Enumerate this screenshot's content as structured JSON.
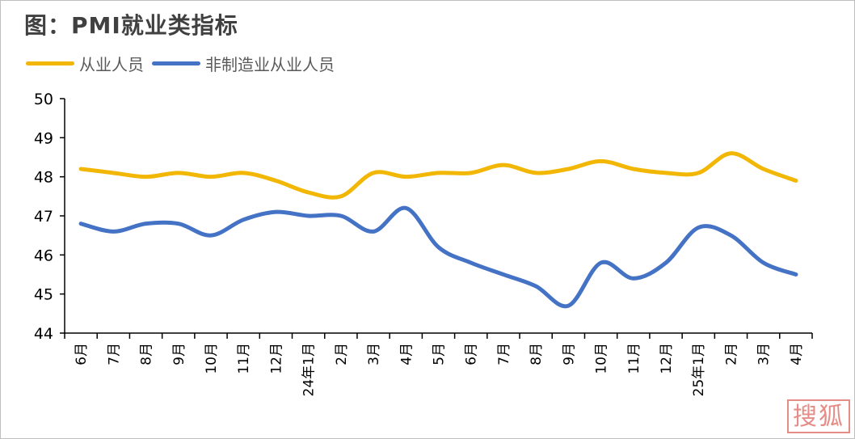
{
  "title": "图：PMI就业类指标",
  "colors": {
    "series1": "#f2b705",
    "series2": "#4472c4",
    "axis": "#000000",
    "text": "#000000"
  },
  "watermark": "搜狐",
  "chart_data": {
    "type": "line",
    "title": "图：PMI就业类指标",
    "categories": [
      "6月",
      "7月",
      "8月",
      "9月",
      "10月",
      "11月",
      "12月",
      "24年1月",
      "2月",
      "3月",
      "4月",
      "5月",
      "6月",
      "7月",
      "8月",
      "9月",
      "10月",
      "11月",
      "12月",
      "25年1月",
      "2月",
      "3月",
      "4月"
    ],
    "series": [
      {
        "name": "从业人员",
        "values": [
          48.2,
          48.1,
          48.0,
          48.1,
          48.0,
          48.1,
          47.9,
          47.6,
          47.5,
          48.1,
          48.0,
          48.1,
          48.1,
          48.3,
          48.1,
          48.2,
          48.4,
          48.2,
          48.1,
          48.1,
          48.6,
          48.2,
          47.9
        ]
      },
      {
        "name": "非制造业从业人员",
        "values": [
          46.8,
          46.6,
          46.8,
          46.8,
          46.5,
          46.9,
          47.1,
          47.0,
          47.0,
          46.6,
          47.2,
          46.2,
          45.8,
          45.5,
          45.2,
          44.7,
          45.8,
          45.4,
          45.8,
          46.7,
          46.5,
          45.8,
          45.5
        ]
      }
    ],
    "ylim": [
      44,
      50
    ],
    "yticks": [
      44,
      45,
      46,
      47,
      48,
      49,
      50
    ],
    "grid": false,
    "legend": "top-left"
  }
}
